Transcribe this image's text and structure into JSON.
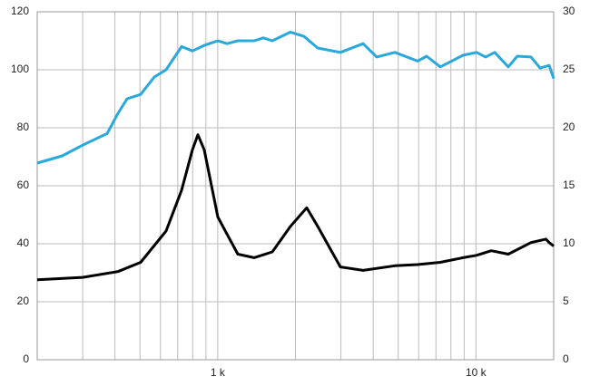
{
  "chart_data": {
    "type": "line",
    "xscale": "log",
    "grid": true,
    "xlim": [
      200,
      20000
    ],
    "xticks": [
      {
        "value": 1000,
        "label": "1 k"
      },
      {
        "value": 10000,
        "label": "10 k"
      }
    ],
    "xgrid": [
      200,
      300,
      400,
      500,
      600,
      700,
      800,
      900,
      1000,
      2000,
      3000,
      4000,
      5000,
      6000,
      7000,
      8000,
      9000,
      10000,
      20000
    ],
    "ylim": [
      0,
      120
    ],
    "yticks": [
      0,
      20,
      40,
      60,
      80,
      100,
      120
    ],
    "y2lim": [
      0,
      30
    ],
    "y2ticks": [
      0,
      5,
      10,
      15,
      20,
      25,
      30
    ],
    "series": [
      {
        "color": "#29a8dc",
        "axis": "y",
        "x": [
          200,
          250,
          300,
          373,
          411,
          446,
          503,
          568,
          631,
          724,
          798,
          887,
          1001,
          1086,
          1196,
          1384,
          1500,
          1627,
          1913,
          2160,
          2438,
          2986,
          3656,
          4128,
          4853,
          5943,
          6441,
          7277,
          8900,
          10050,
          10900,
          11820,
          13340,
          14460,
          16340,
          17720,
          19200,
          20000
        ],
        "values": [
          67.8,
          70.3,
          74,
          78,
          85,
          90,
          91.5,
          97.5,
          100,
          108,
          106.5,
          108.4,
          110,
          109,
          110,
          110,
          111,
          110,
          113,
          111.5,
          107.5,
          106,
          109,
          104.4,
          106,
          103,
          104.7,
          101,
          105,
          106,
          104.4,
          106,
          101,
          104.7,
          104.4,
          100.6,
          101.5,
          97
        ]
      },
      {
        "color": "#000000",
        "axis": "y2",
        "x": [
          200,
          300,
          411,
          503,
          631,
          724,
          798,
          838,
          887,
          1001,
          1196,
          1384,
          1627,
          1913,
          2212,
          2438,
          2986,
          3656,
          4853,
          5943,
          7277,
          8900,
          10050,
          11460,
          13340,
          16340,
          18650,
          19200,
          20000
        ],
        "values": [
          6.9,
          7.1,
          7.6,
          8.4,
          11.1,
          14.6,
          18.1,
          19.4,
          18.1,
          12.3,
          9.1,
          8.8,
          9.3,
          11.5,
          13.1,
          11.5,
          8.0,
          7.7,
          8.1,
          8.2,
          8.4,
          8.8,
          9.0,
          9.4,
          9.1,
          10.1,
          10.4,
          10.1,
          9.8
        ]
      }
    ]
  }
}
